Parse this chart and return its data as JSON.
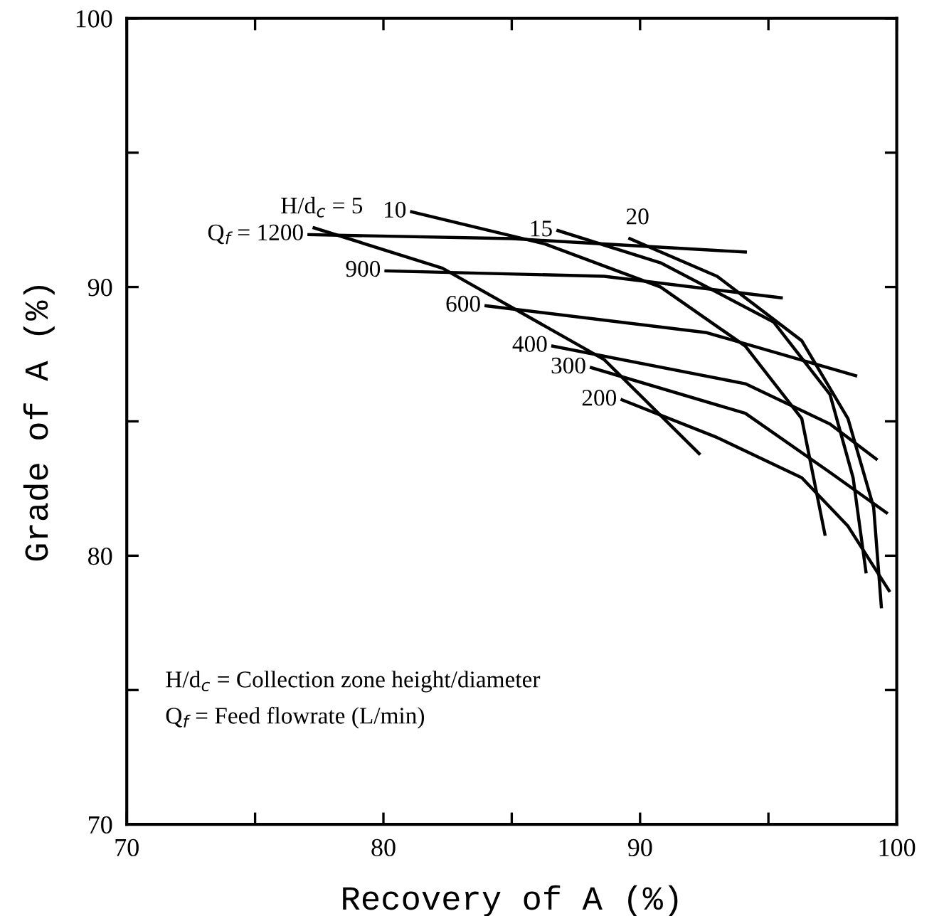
{
  "chart_data": {
    "type": "line",
    "xlabel": "Recovery of A (%)",
    "ylabel": "Grade of A (%)",
    "xlim": [
      70,
      100
    ],
    "ylim": [
      70,
      100
    ],
    "xticks": [
      70,
      {
        "value": 75,
        "label": null
      },
      80,
      {
        "value": 85,
        "label": null
      },
      90,
      {
        "value": 95,
        "label": null
      },
      100
    ],
    "yticks": [
      70,
      {
        "value": 75,
        "label": null
      },
      80,
      {
        "value": 85,
        "label": null
      },
      90,
      {
        "value": 95,
        "label": null
      },
      100
    ],
    "grid": false,
    "legend": false,
    "marker": "none",
    "line_style": "solid",
    "series": [
      {
        "name": "Q$_{f}$ = 1200",
        "color": "#000000",
        "x": [
          77.1,
          85.0,
          94.1
        ],
        "values": [
          91.95,
          91.8,
          91.3
        ]
      },
      {
        "name": "900",
        "color": "#000000",
        "x": [
          80.1,
          88.6,
          95.5
        ],
        "values": [
          90.6,
          90.4,
          89.6
        ]
      },
      {
        "name": "600",
        "color": "#000000",
        "x": [
          84.0,
          92.6,
          98.4
        ],
        "values": [
          89.3,
          88.3,
          86.7
        ]
      },
      {
        "name": "400",
        "color": "#000000",
        "x": [
          86.6,
          94.1,
          97.4,
          99.2
        ],
        "values": [
          87.8,
          86.4,
          84.9,
          83.6
        ]
      },
      {
        "name": "300",
        "color": "#000000",
        "x": [
          88.1,
          94.1,
          97.4,
          99.6
        ],
        "values": [
          87.0,
          85.3,
          83.1,
          81.6
        ]
      },
      {
        "name": "200",
        "color": "#000000",
        "x": [
          89.3,
          93.0,
          96.3,
          98.1,
          99.7
        ],
        "values": [
          85.8,
          84.4,
          82.9,
          81.1,
          78.7
        ]
      },
      {
        "name": "H/d$_{c}$ = 5",
        "color": "#000000",
        "x": [
          77.3,
          82.3,
          88.6,
          92.3
        ],
        "values": [
          92.2,
          90.7,
          87.3,
          83.8
        ]
      },
      {
        "name": "10",
        "color": "#000000",
        "x": [
          81.1,
          86.3,
          90.8,
          94.1,
          96.3,
          97.2
        ],
        "values": [
          92.8,
          91.6,
          90.0,
          87.8,
          85.1,
          80.8
        ]
      },
      {
        "name": "15",
        "color": "#000000",
        "x": [
          86.8,
          90.8,
          95.2,
          97.4,
          98.3,
          98.8
        ],
        "values": [
          92.1,
          90.9,
          88.7,
          86.0,
          82.9,
          79.4
        ]
      },
      {
        "name": "20",
        "color": "#000000",
        "x": [
          89.6,
          93.0,
          96.3,
          98.1,
          99.1,
          99.4
        ],
        "values": [
          91.8,
          90.4,
          88.0,
          85.1,
          81.8,
          78.1
        ]
      }
    ],
    "annotations": [
      "H/d$_{c}$ = Collection zone height/diameter",
      "Q$_{f}$ = Feed flowrate (L/min)"
    ]
  }
}
